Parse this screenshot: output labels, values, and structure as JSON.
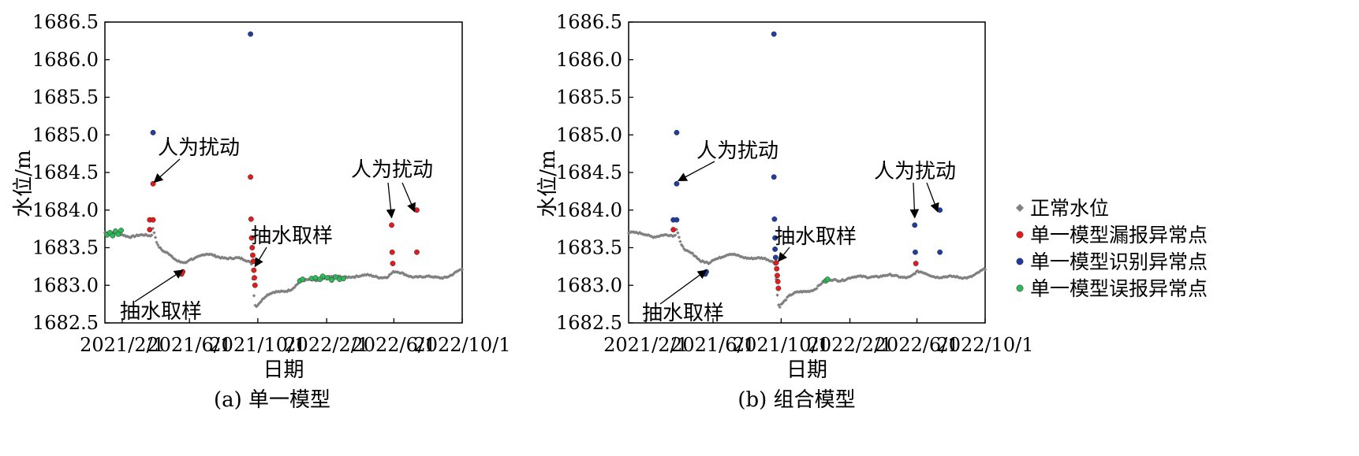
{
  "chart_data": [
    {
      "type": "scatter",
      "caption": "(a) 单一模型",
      "xlabel": "日期",
      "ylabel": "水位/m",
      "xlim": [
        "2021-01-01",
        "2022-10-01"
      ],
      "ylim": [
        1682.5,
        1686.5
      ],
      "x_ticks": [
        "2021/2/1",
        "2021/6/1",
        "2021/10/1",
        "2022/2/1",
        "2022/6/1",
        "2022/10/1"
      ],
      "y_ticks": [
        "1682.5",
        "1683.0",
        "1683.5",
        "1684.0",
        "1684.5",
        "1685.0",
        "1685.5",
        "1686.0",
        "1686.5"
      ],
      "grid": false,
      "series": [
        {
          "name": "单一模型漏报异常点",
          "points": [
            {
              "x": "2021-03-28",
              "y": 1684.35
            },
            {
              "x": "2021-03-22",
              "y": 1683.87
            },
            {
              "x": "2021-03-28",
              "y": 1683.87
            },
            {
              "x": "2021-03-22",
              "y": 1683.74
            },
            {
              "x": "2021-05-18",
              "y": 1683.15
            },
            {
              "x": "2021-05-20",
              "y": 1683.18
            },
            {
              "x": "2021-09-18",
              "y": 1684.44
            },
            {
              "x": "2021-09-19",
              "y": 1683.88
            },
            {
              "x": "2021-09-20",
              "y": 1683.63
            },
            {
              "x": "2021-09-21",
              "y": 1683.5
            },
            {
              "x": "2021-09-22",
              "y": 1683.4
            },
            {
              "x": "2021-09-23",
              "y": 1683.32
            },
            {
              "x": "2021-09-24",
              "y": 1683.2
            },
            {
              "x": "2021-09-25",
              "y": 1683.1
            },
            {
              "x": "2021-09-26",
              "y": 1683.0
            },
            {
              "x": "2022-05-28",
              "y": 1683.8
            },
            {
              "x": "2022-05-29",
              "y": 1683.44
            },
            {
              "x": "2022-05-30",
              "y": 1683.29
            },
            {
              "x": "2022-07-12",
              "y": 1684.0
            },
            {
              "x": "2022-07-12",
              "y": 1683.44
            }
          ]
        },
        {
          "name": "单一模型识别异常点",
          "points": [
            {
              "x": "2021-03-28",
              "y": 1685.03
            },
            {
              "x": "2021-09-18",
              "y": 1686.34
            }
          ]
        },
        {
          "name": "单一模型误报异常点",
          "points": [
            {
              "x": "2021-01-05",
              "y": 1683.67
            },
            {
              "x": "2021-01-10",
              "y": 1683.7
            },
            {
              "x": "2021-01-15",
              "y": 1683.66
            },
            {
              "x": "2021-01-20",
              "y": 1683.72
            },
            {
              "x": "2021-01-25",
              "y": 1683.68
            },
            {
              "x": "2021-01-30",
              "y": 1683.73
            },
            {
              "x": "2021-12-15",
              "y": 1683.06
            },
            {
              "x": "2021-12-20",
              "y": 1683.08
            },
            {
              "x": "2022-01-05",
              "y": 1683.09
            },
            {
              "x": "2022-01-12",
              "y": 1683.1
            },
            {
              "x": "2022-01-20",
              "y": 1683.08
            },
            {
              "x": "2022-01-25",
              "y": 1683.12
            },
            {
              "x": "2022-02-02",
              "y": 1683.1
            },
            {
              "x": "2022-02-10",
              "y": 1683.07
            },
            {
              "x": "2022-02-17",
              "y": 1683.11
            },
            {
              "x": "2022-02-24",
              "y": 1683.08
            },
            {
              "x": "2022-03-03",
              "y": 1683.09
            }
          ]
        }
      ],
      "annotations": [
        {
          "text": "人为扰动",
          "target": {
            "x": "2021-03-30",
            "y": 1684.37
          }
        },
        {
          "text": "抽水取样",
          "target": {
            "x": "2021-09-26",
            "y": 1683.25
          }
        },
        {
          "text": "抽水取样",
          "target": {
            "x": "2021-05-20",
            "y": 1683.2
          }
        },
        {
          "text": "人为扰动",
          "target": {
            "x": "2022-05-28",
            "y": 1683.9
          }
        },
        {
          "text": "人为扰动",
          "target": {
            "x": "2022-07-08",
            "y": 1683.98
          }
        }
      ]
    },
    {
      "type": "scatter",
      "caption": "(b) 组合模型",
      "xlabel": "日期",
      "ylabel": "水位/m",
      "xlim": [
        "2021-01-01",
        "2022-10-01"
      ],
      "ylim": [
        1682.5,
        1686.5
      ],
      "x_ticks": [
        "2021/2/1",
        "2021/6/1",
        "2021/10/1",
        "2022/2/1",
        "2022/6/1",
        "2022/10/1"
      ],
      "y_ticks": [
        "1682.5",
        "1683.0",
        "1683.5",
        "1684.0",
        "1684.5",
        "1685.0",
        "1685.5",
        "1686.0",
        "1686.5"
      ],
      "grid": false,
      "series": [
        {
          "name": "单一模型漏报异常点",
          "points": [
            {
              "x": "2021-03-22",
              "y": 1683.74
            },
            {
              "x": "2021-09-22",
              "y": 1683.3
            },
            {
              "x": "2021-09-23",
              "y": 1683.22
            },
            {
              "x": "2021-09-24",
              "y": 1683.13
            },
            {
              "x": "2021-09-25",
              "y": 1683.05
            },
            {
              "x": "2021-09-26",
              "y": 1682.96
            },
            {
              "x": "2022-05-30",
              "y": 1683.29
            }
          ]
        },
        {
          "name": "单一模型识别异常点",
          "points": [
            {
              "x": "2021-03-28",
              "y": 1685.03
            },
            {
              "x": "2021-03-28",
              "y": 1684.35
            },
            {
              "x": "2021-03-22",
              "y": 1683.87
            },
            {
              "x": "2021-03-28",
              "y": 1683.87
            },
            {
              "x": "2021-05-18",
              "y": 1683.15
            },
            {
              "x": "2021-05-20",
              "y": 1683.18
            },
            {
              "x": "2021-09-18",
              "y": 1686.34
            },
            {
              "x": "2021-09-18",
              "y": 1684.44
            },
            {
              "x": "2021-09-19",
              "y": 1683.88
            },
            {
              "x": "2021-09-20",
              "y": 1683.63
            },
            {
              "x": "2021-09-20",
              "y": 1683.48
            },
            {
              "x": "2021-09-21",
              "y": 1683.37
            },
            {
              "x": "2022-05-28",
              "y": 1683.8
            },
            {
              "x": "2022-05-29",
              "y": 1683.44
            },
            {
              "x": "2022-07-12",
              "y": 1684.0
            },
            {
              "x": "2022-07-12",
              "y": 1683.44
            }
          ]
        },
        {
          "name": "单一模型误报异常点",
          "points": [
            {
              "x": "2021-12-20",
              "y": 1683.06
            },
            {
              "x": "2021-12-23",
              "y": 1683.08
            }
          ]
        }
      ],
      "annotations": [
        {
          "text": "人为扰动",
          "target": {
            "x": "2021-03-31",
            "y": 1684.39
          }
        },
        {
          "text": "抽水取样",
          "target": {
            "x": "2021-09-26",
            "y": 1683.32
          }
        },
        {
          "text": "抽水取样",
          "target": {
            "x": "2021-05-20",
            "y": 1683.2
          }
        },
        {
          "text": "人为扰动",
          "target": {
            "x": "2022-05-28",
            "y": 1683.9
          }
        },
        {
          "text": "人为扰动",
          "target": {
            "x": "2022-07-08",
            "y": 1683.98
          }
        }
      ]
    }
  ],
  "normal_series": {
    "name": "正常水位",
    "points": [
      {
        "x": "2021-01-01",
        "y": 1683.7
      },
      {
        "x": "2021-01-15",
        "y": 1683.68
      },
      {
        "x": "2021-02-01",
        "y": 1683.68
      },
      {
        "x": "2021-02-15",
        "y": 1683.66
      },
      {
        "x": "2021-03-01",
        "y": 1683.66
      },
      {
        "x": "2021-03-15",
        "y": 1683.65
      },
      {
        "x": "2021-03-25",
        "y": 1683.65
      },
      {
        "x": "2021-03-28",
        "y": 1683.76
      },
      {
        "x": "2021-04-05",
        "y": 1683.55
      },
      {
        "x": "2021-04-15",
        "y": 1683.47
      },
      {
        "x": "2021-04-25",
        "y": 1683.42
      },
      {
        "x": "2021-05-10",
        "y": 1683.3
      },
      {
        "x": "2021-05-25",
        "y": 1683.3
      },
      {
        "x": "2021-06-01",
        "y": 1683.36
      },
      {
        "x": "2021-06-15",
        "y": 1683.38
      },
      {
        "x": "2021-07-01",
        "y": 1683.4
      },
      {
        "x": "2021-07-15",
        "y": 1683.39
      },
      {
        "x": "2021-08-01",
        "y": 1683.38
      },
      {
        "x": "2021-08-15",
        "y": 1683.36
      },
      {
        "x": "2021-09-01",
        "y": 1683.34
      },
      {
        "x": "2021-09-15",
        "y": 1683.32
      },
      {
        "x": "2021-09-20",
        "y": 1683.3
      },
      {
        "x": "2021-09-24",
        "y": 1682.9
      },
      {
        "x": "2021-09-27",
        "y": 1682.72
      },
      {
        "x": "2021-10-01",
        "y": 1682.76
      },
      {
        "x": "2021-10-15",
        "y": 1682.85
      },
      {
        "x": "2021-11-01",
        "y": 1682.9
      },
      {
        "x": "2021-11-15",
        "y": 1682.93
      },
      {
        "x": "2021-12-01",
        "y": 1682.96
      },
      {
        "x": "2021-12-15",
        "y": 1683.03
      },
      {
        "x": "2022-01-01",
        "y": 1683.07
      },
      {
        "x": "2022-01-15",
        "y": 1683.08
      },
      {
        "x": "2022-02-01",
        "y": 1683.1
      },
      {
        "x": "2022-02-15",
        "y": 1683.1
      },
      {
        "x": "2022-03-01",
        "y": 1683.11
      },
      {
        "x": "2022-03-15",
        "y": 1683.13
      },
      {
        "x": "2022-04-01",
        "y": 1683.12
      },
      {
        "x": "2022-04-15",
        "y": 1683.12
      },
      {
        "x": "2022-05-01",
        "y": 1683.12
      },
      {
        "x": "2022-05-20",
        "y": 1683.12
      },
      {
        "x": "2022-06-01",
        "y": 1683.17
      },
      {
        "x": "2022-06-15",
        "y": 1683.15
      },
      {
        "x": "2022-07-01",
        "y": 1683.13
      },
      {
        "x": "2022-07-15",
        "y": 1683.12
      },
      {
        "x": "2022-08-01",
        "y": 1683.1
      },
      {
        "x": "2022-08-15",
        "y": 1683.1
      },
      {
        "x": "2022-09-01",
        "y": 1683.12
      },
      {
        "x": "2022-09-15",
        "y": 1683.15
      },
      {
        "x": "2022-10-01",
        "y": 1683.2
      }
    ]
  },
  "legend": {
    "placement": "right",
    "entries": [
      {
        "label": "正常水位",
        "marker": "diamond",
        "color": "#808080"
      },
      {
        "label": "单一模型漏报异常点",
        "marker": "circle",
        "color": "#e41a1c"
      },
      {
        "label": "单一模型识别异常点",
        "marker": "circle",
        "color": "#1f3c9e"
      },
      {
        "label": "单一模型误报异常点",
        "marker": "circle",
        "color": "#2fb85a"
      }
    ]
  },
  "colors": {
    "normal": "#808080",
    "missed": "#e41a1c",
    "detected": "#1f3c9e",
    "false_alarm": "#2fb85a"
  }
}
